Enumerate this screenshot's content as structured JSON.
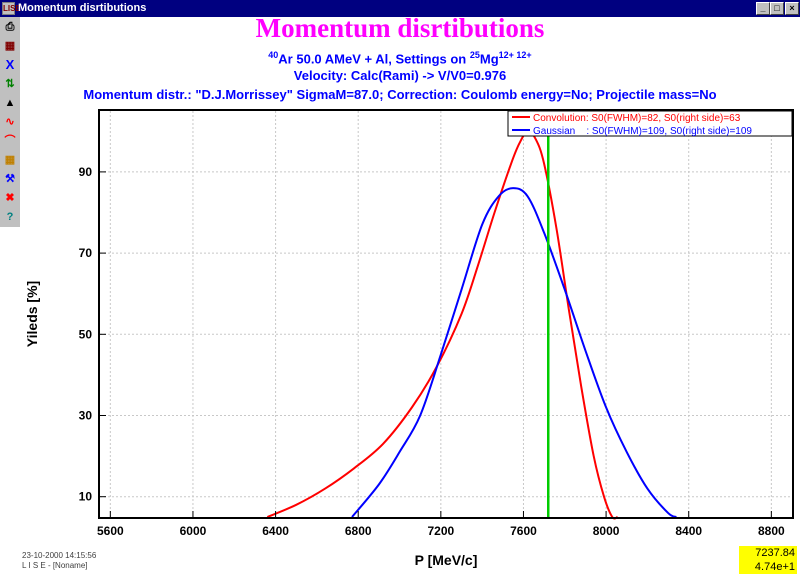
{
  "window": {
    "title": "Momentum disrtibutions",
    "app_icon": "LISE"
  },
  "toolbar": {
    "icons": [
      "print-icon",
      "printer-setup-icon",
      "close-x-icon",
      "fit-icon",
      "color-palette-icon",
      "curve-style-icon",
      "spline-icon",
      "grid-table-icon",
      "tools-icon",
      "delete-icon",
      "help-icon"
    ]
  },
  "header": {
    "title": "Momentum disrtibutions",
    "sub_pre_mass": "40",
    "sub_text1": "Ar 50.0 AMeV + Al, Settings on ",
    "sub_mass": "25",
    "sub_elem": "Mg",
    "sub_charges": "12+ 12+",
    "velocity": "Velocity: Calc(Rami) -> V/V0=0.976",
    "momentum": "Momentum distr.: \"D.J.Morrissey\"   SigmaM=87.0; Correction: Coulomb energy=No; Projectile mass=No"
  },
  "chart_data": {
    "type": "line",
    "xlabel": "P [MeV/c]",
    "ylabel": "Yileds [%]",
    "xlim": [
      5550,
      8900
    ],
    "ylim": [
      5,
      105
    ],
    "x_ticks": [
      "5600",
      "6000",
      "6400",
      "6800",
      "7200",
      "7600",
      "8000",
      "8400",
      "8800"
    ],
    "y_ticks": [
      "10",
      "30",
      "50",
      "70",
      "90"
    ],
    "x_tick_values": [
      5600,
      6000,
      6400,
      6800,
      7200,
      7600,
      8000,
      8400,
      8800
    ],
    "y_tick_values": [
      10,
      30,
      50,
      70,
      90
    ],
    "grid": true,
    "legend_position": "top-right",
    "vertical_marker": 7720,
    "series": [
      {
        "name": "Convolution: S0(FWHM)=82, S0(right side)=63",
        "color": "#ff0000",
        "x": [
          6360,
          6500,
          6640,
          6780,
          6920,
          7060,
          7180,
          7300,
          7380,
          7460,
          7540,
          7580,
          7620,
          7660,
          7700,
          7760,
          7820,
          7880,
          7940,
          7990,
          8030,
          8055
        ],
        "y": [
          5,
          8,
          12,
          17,
          23,
          32,
          42,
          55,
          67,
          80,
          92,
          97,
          100,
          98,
          92,
          76,
          56,
          37,
          20,
          10,
          5,
          5
        ]
      },
      {
        "name": "Gaussian    : S0(FWHM)=109, S0(right side)=109",
        "color": "#0000ff",
        "x": [
          6770,
          6900,
          7000,
          7100,
          7200,
          7300,
          7400,
          7480,
          7550,
          7620,
          7700,
          7800,
          7900,
          8000,
          8100,
          8200,
          8300,
          8340
        ],
        "y": [
          5,
          13,
          21,
          30,
          45,
          61,
          77,
          84,
          86,
          84,
          75,
          61,
          46,
          32,
          21,
          12,
          6,
          5
        ]
      }
    ]
  },
  "footer": {
    "date": "23-10-2000  14:15:56",
    "file": "L I S E  - [Noname]",
    "readout_x": "7237.84",
    "readout_y": "4.74e+1"
  },
  "colors": {
    "title_magenta": "#ff00ff",
    "header_blue": "#0000ff",
    "marker_green": "#00cc00",
    "titlebar": "#000080"
  }
}
